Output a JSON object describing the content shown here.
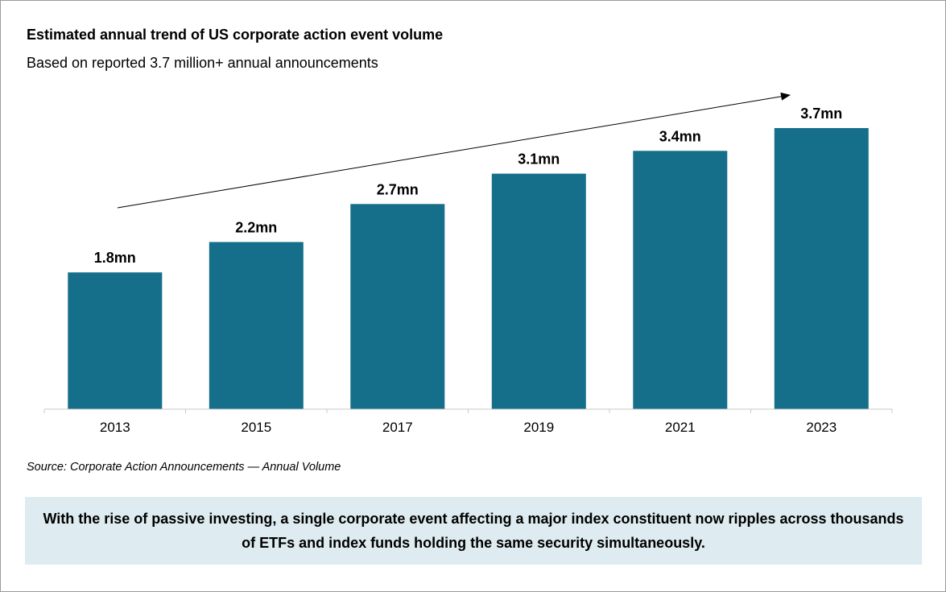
{
  "title": "Estimated annual trend of US corporate action event volume",
  "subtitle": "Based on reported 3.7 million+ annual announcements",
  "source": "Source: Corporate Action Announcements — Annual Volume",
  "callout": "With the rise of passive investing, a single corporate event affecting a major index constituent now ripples across thousands of ETFs and index funds holding the same security simultaneously.",
  "colors": {
    "bar": "#156f8a",
    "callout_bg": "#deebf0",
    "axis": "#c8c8c8"
  },
  "chart_data": {
    "type": "bar",
    "title": "Estimated annual trend of US corporate action event volume",
    "subtitle": "Based on reported 3.7 million+ annual announcements",
    "xlabel": "",
    "ylabel": "",
    "categories": [
      "2013",
      "2015",
      "2017",
      "2019",
      "2021",
      "2023"
    ],
    "values": [
      1.8,
      2.2,
      2.7,
      3.1,
      3.4,
      3.7
    ],
    "value_labels": [
      "1.8mn",
      "2.2mn",
      "2.7mn",
      "3.1mn",
      "3.4mn",
      "3.7mn"
    ],
    "unit": "mn",
    "ylim": [
      0,
      3.7
    ],
    "grid": false,
    "annotations": [
      {
        "type": "trend-arrow",
        "description": "upward trend arrow above bars"
      }
    ]
  }
}
